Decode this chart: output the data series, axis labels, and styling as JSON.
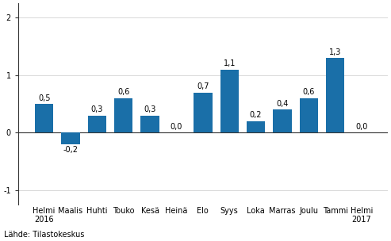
{
  "categories": [
    "Helmi\n2016",
    "Maalis",
    "Huhti",
    "Touko",
    "Kesä",
    "Heinä",
    "Elo",
    "Syys",
    "Loka",
    "Marras",
    "Joulu",
    "Tammi",
    "Helmi\n2017"
  ],
  "values": [
    0.5,
    -0.2,
    0.3,
    0.6,
    0.3,
    0.0,
    0.7,
    1.1,
    0.2,
    0.4,
    0.6,
    1.3,
    0.0
  ],
  "bar_color": "#1a6fa8",
  "ylim": [
    -1.25,
    2.25
  ],
  "yticks": [
    -1,
    0,
    1,
    2
  ],
  "footer": "Lähde: Tilastokeskus",
  "background_color": "#ffffff",
  "grid_color": "#d8d8d8",
  "label_fontsize": 7.0,
  "tick_fontsize": 7.0
}
